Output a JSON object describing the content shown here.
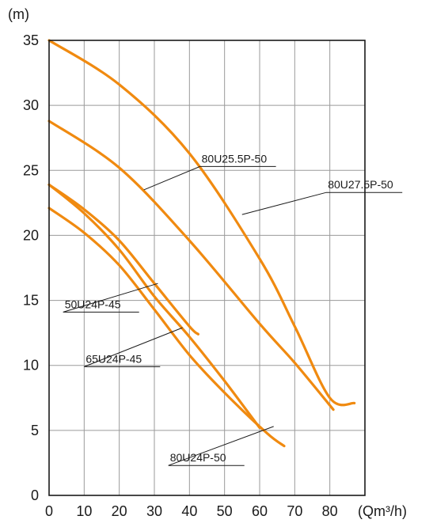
{
  "chart_data": {
    "type": "line",
    "title": "",
    "xlabel": "(Qm³/h)",
    "ylabel": "(m)",
    "xlim": [
      0,
      90
    ],
    "ylim": [
      0,
      35
    ],
    "xticks": [
      0,
      10,
      20,
      30,
      40,
      50,
      60,
      70,
      80
    ],
    "yticks": [
      0,
      5,
      10,
      15,
      20,
      25,
      30,
      35
    ],
    "grid": true,
    "series_color": "#f08a10",
    "series": [
      {
        "name": "80U27.5P-50",
        "points": [
          [
            0,
            35
          ],
          [
            20,
            31.6
          ],
          [
            40,
            26.3
          ],
          [
            60,
            18.2
          ],
          [
            70,
            13
          ],
          [
            80,
            7.5
          ],
          [
            87,
            7.1
          ]
        ],
        "label_anchor": [
          55,
          21.6
        ],
        "label_pos": [
          79,
          23.3
        ]
      },
      {
        "name": "80U25.5P-50",
        "points": [
          [
            0,
            28.8
          ],
          [
            20,
            25.2
          ],
          [
            40,
            19.6
          ],
          [
            60,
            13.2
          ],
          [
            70,
            10.2
          ],
          [
            81,
            6.6
          ]
        ],
        "label_anchor": [
          27,
          23.5
        ],
        "label_pos": [
          43,
          25.3
        ]
      },
      {
        "name": "50U24P-45",
        "points": [
          [
            0,
            23.9
          ],
          [
            10,
            22
          ],
          [
            20,
            19.6
          ],
          [
            30,
            16.3
          ],
          [
            40,
            13
          ],
          [
            42.5,
            12.4
          ]
        ],
        "label_anchor": [
          31,
          16.3
        ],
        "label_pos": [
          4,
          14.1
        ]
      },
      {
        "name": "65U24P-45",
        "points": [
          [
            0,
            23.9
          ],
          [
            10,
            21.7
          ],
          [
            20,
            18.9
          ],
          [
            30,
            15.3
          ],
          [
            40,
            12.2
          ],
          [
            50,
            8.8
          ],
          [
            60,
            5.2
          ]
        ],
        "label_anchor": [
          38,
          12.9
        ],
        "label_pos": [
          10,
          9.9
        ]
      },
      {
        "name": "80U24P-50",
        "points": [
          [
            0,
            22.1
          ],
          [
            10,
            20.2
          ],
          [
            20,
            17.7
          ],
          [
            30,
            14.3
          ],
          [
            40,
            10.8
          ],
          [
            50,
            7.9
          ],
          [
            62,
            4.8
          ],
          [
            67,
            3.8
          ]
        ],
        "label_anchor": [
          64,
          5.3
        ],
        "label_pos": [
          34,
          2.3
        ]
      }
    ]
  }
}
